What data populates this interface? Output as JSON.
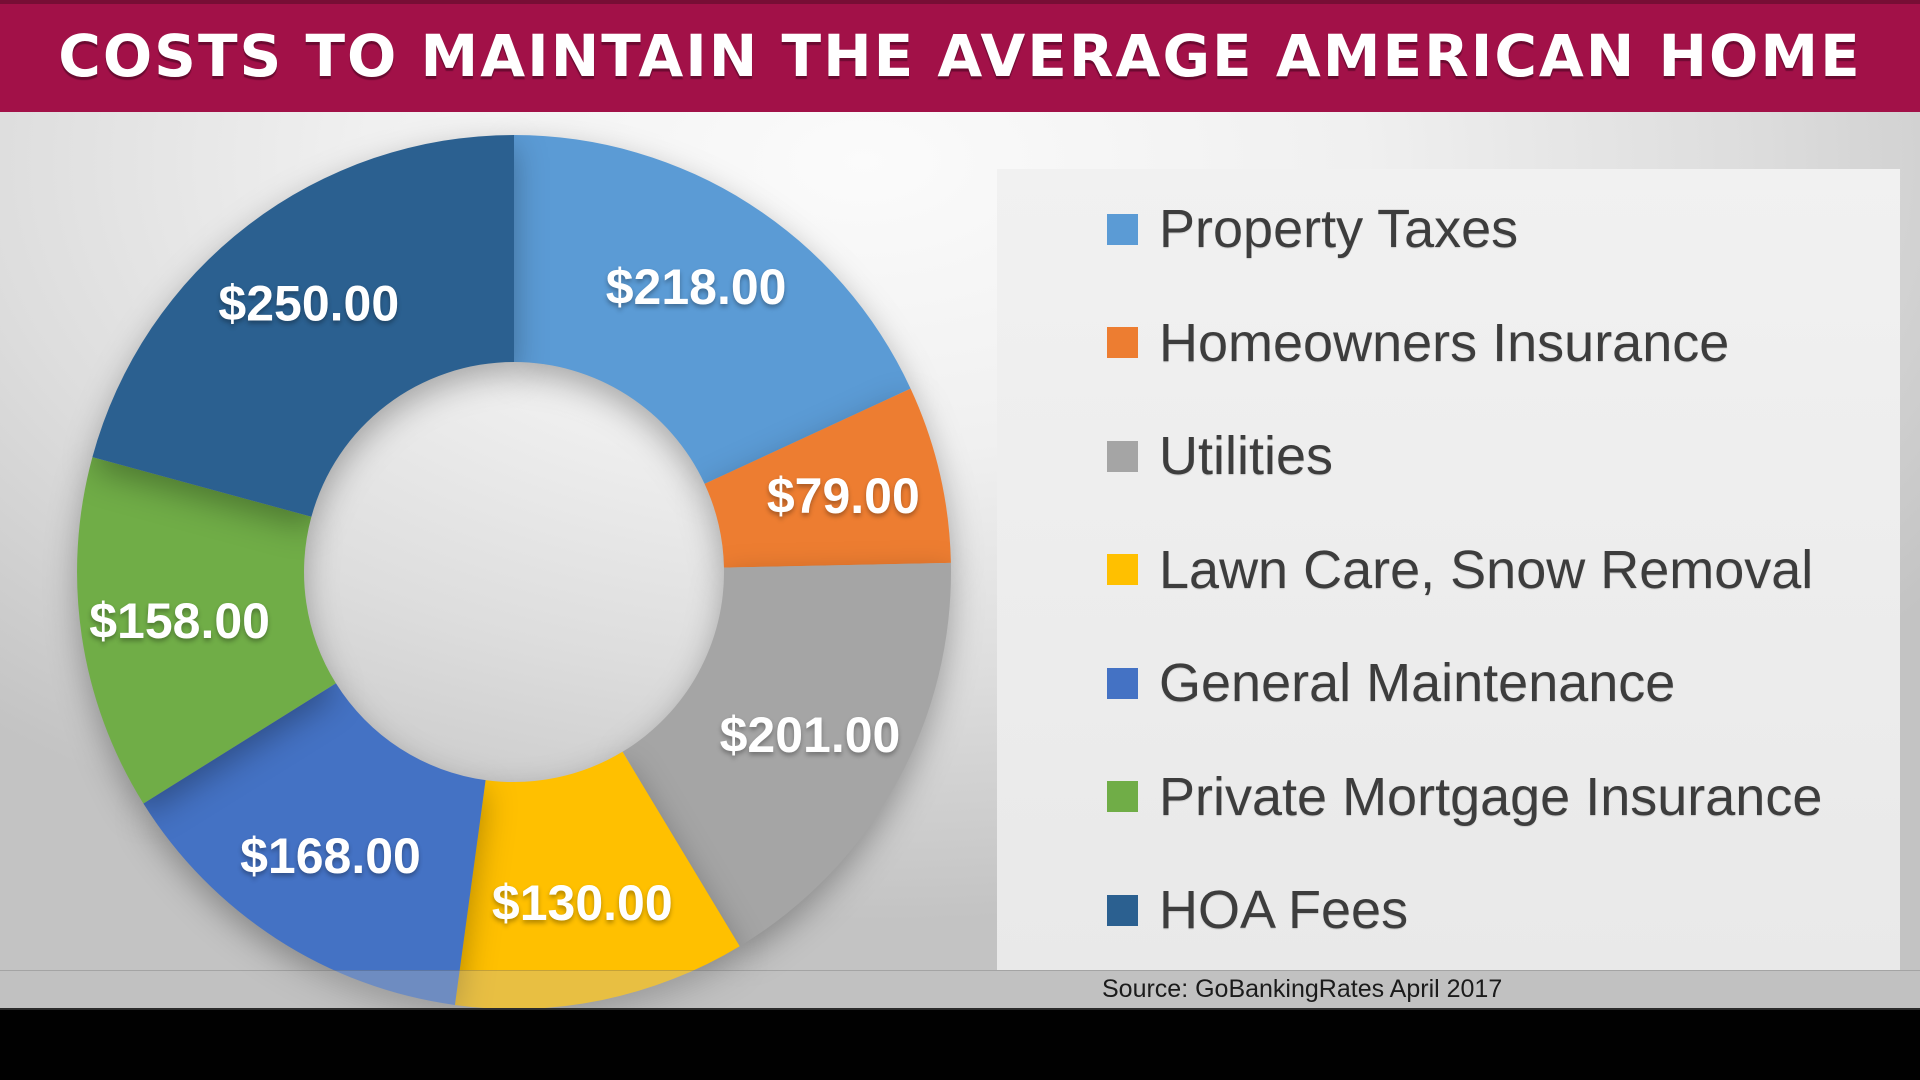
{
  "header": {
    "title": "COSTS TO MAINTAIN THE AVERAGE AMERICAN HOME",
    "background_color": "#A21148",
    "text_color": "#FFFFFF"
  },
  "chart_data": {
    "type": "pie",
    "subtype": "donut",
    "title": "COSTS TO MAINTAIN THE AVERAGE AMERICAN HOME",
    "categories": [
      "Property Taxes",
      "Homeowners Insurance",
      "Utilities",
      "Lawn Care, Snow Removal",
      "General Maintenance",
      "Private Mortgage Insurance",
      "HOA Fees"
    ],
    "values": [
      218,
      79,
      201,
      130,
      168,
      158,
      250
    ],
    "data_labels": [
      "$218.00",
      "$79.00",
      "$201.00",
      "$130.00",
      "$168.00",
      "$158.00",
      "$250.00"
    ],
    "colors": [
      "#5B9BD5",
      "#ED7D31",
      "#A5A5A5",
      "#FFC000",
      "#4472C4",
      "#70AD47",
      "#2B6090"
    ],
    "total": 1204,
    "start_angle_deg": 0,
    "direction": "clockwise",
    "hole_ratio": 0.48,
    "legend_position": "right",
    "grid": false
  },
  "footer": {
    "source": "Source: GoBankingRates April 2017"
  }
}
